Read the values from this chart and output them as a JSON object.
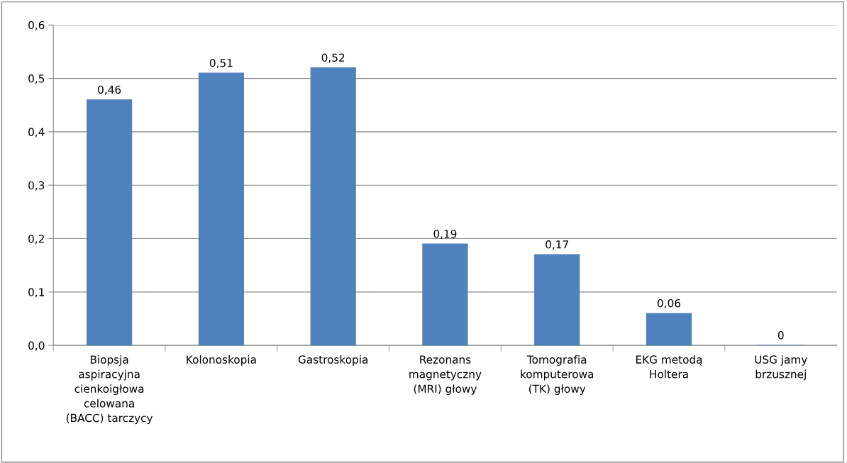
{
  "chart_data": {
    "type": "bar",
    "categories": [
      "Biopsja\naspiracyjna\ncienkoigłowa\ncelowana\n(BACC) tarczycy",
      "Kolonoskopia",
      "Gastroskopia",
      "Rezonans\nmagnetyczny\n(MRI) głowy",
      "Tomografia\nkomputerowa\n(TK) głowy",
      "EKG metodą\nHoltera",
      "USG jamy\nbrzusznej"
    ],
    "values": [
      0.46,
      0.51,
      0.52,
      0.19,
      0.17,
      0.06,
      0
    ],
    "value_labels": [
      "0,46",
      "0,51",
      "0,52",
      "0,19",
      "0,17",
      "0,06",
      "0"
    ],
    "color": "#4f81bd",
    "ylim": [
      0,
      0.6
    ],
    "yticks": [
      {
        "value": 0,
        "label": "0,0"
      },
      {
        "value": 0.1,
        "label": "0,1"
      },
      {
        "value": 0.2,
        "label": "0,2"
      },
      {
        "value": 0.3,
        "label": "0,3"
      },
      {
        "value": 0.4,
        "label": "0,4"
      },
      {
        "value": 0.5,
        "label": "0,5"
      },
      {
        "value": 0.6,
        "label": "0,6"
      }
    ],
    "grid": "y",
    "legend": false
  }
}
